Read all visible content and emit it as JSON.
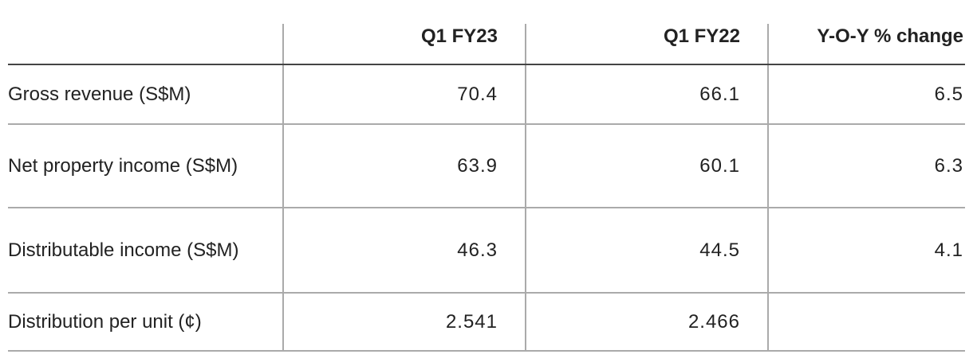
{
  "table": {
    "columns": [
      "Q1 FY23",
      "Q1 FY22",
      "Y-O-Y % change"
    ],
    "rows": [
      {
        "label": "Gross revenue (S$M)",
        "values": [
          70.4,
          66.1,
          6.5
        ]
      },
      {
        "label": "Net property income (S$M)",
        "values": [
          63.9,
          60.1,
          6.3
        ]
      },
      {
        "label": "Distributable income (S$M)",
        "values": [
          46.3,
          44.5,
          4.1
        ]
      },
      {
        "label": "Distribution per unit (¢)",
        "values": [
          2.541,
          2.466,
          null
        ]
      }
    ]
  }
}
